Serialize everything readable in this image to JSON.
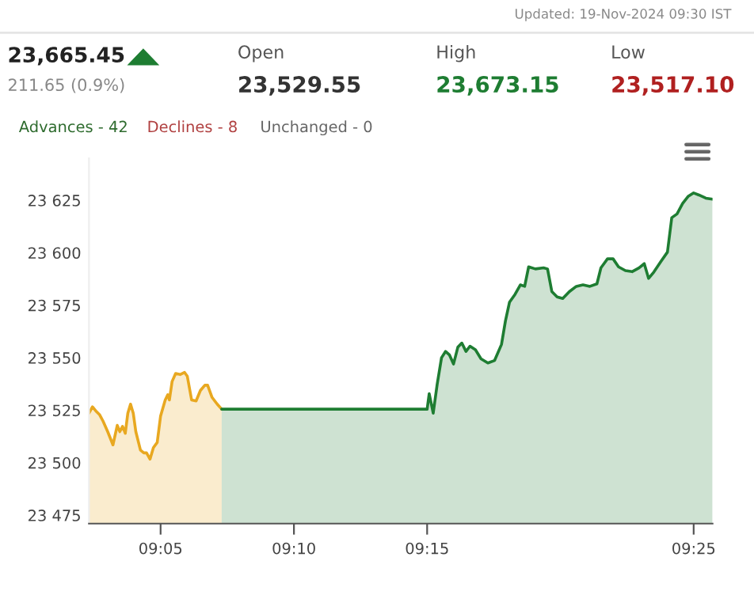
{
  "chart_data": {
    "type": "area",
    "annotations": [
      "Updated: 19-Nov-2024 09:30 IST",
      "23,665.45",
      "211.65 (0.9%)",
      "Open",
      "23,529.55",
      "High",
      "23,673.15",
      "Low",
      "23,517.10",
      "Advances - 42",
      "Declines - 8",
      "Unchanged - 0"
    ],
    "series": [
      {
        "color": "#e8a820",
        "x": [
          9.0385,
          9.0407,
          9.0432,
          9.0452,
          9.0473,
          9.0502,
          9.0535,
          9.0562,
          9.0578,
          9.0595,
          9.0612,
          9.0628,
          9.0645,
          9.0662,
          9.0678,
          9.0707,
          9.0728,
          9.0745,
          9.0767,
          9.0788,
          9.0812,
          9.0833,
          9.0862,
          9.0878,
          9.0888,
          9.0905,
          9.0927,
          9.0955,
          9.0983,
          9.1,
          9.1027,
          9.1055,
          9.1082,
          9.111,
          9.1127,
          9.1155,
          9.1187,
          9.1215
        ],
        "values": [
          23523.6,
          23526.6,
          23524.3,
          23522.8,
          23519.8,
          23514.8,
          23508.5,
          23517.8,
          23514.8,
          23517.3,
          23514.0,
          23523.6,
          23527.9,
          23523.6,
          23514.8,
          23506,
          23504.7,
          23504.7,
          23501.7,
          23507.2,
          23509.7,
          23522.3,
          23529.9,
          23532.4,
          23529.9,
          23538.7,
          23542.5,
          23542,
          23543,
          23541.2,
          23529.9,
          23529.4,
          23534.4,
          23536.9,
          23536.9,
          23531.1,
          23527.9,
          23525.5
        ]
      },
      {
        "color": "#1e7d32",
        "x": [
          9.1215,
          9.25,
          9.2513,
          9.2538,
          9.2563,
          9.259,
          9.2615,
          9.264,
          9.2665,
          9.2692,
          9.2717,
          9.2743,
          9.2768,
          9.2802,
          9.2837,
          9.288,
          9.2922,
          9.2965,
          9.299,
          9.3015,
          9.305,
          9.3083,
          9.311,
          9.3135,
          9.3177,
          9.3228,
          9.3253,
          9.328,
          9.3313,
          9.3348,
          9.339,
          9.3433,
          9.3475,
          9.3518,
          9.3562,
          9.3587,
          9.3628,
          9.3663,
          9.3697,
          9.374,
          9.3782,
          9.3825,
          9.3858,
          9.3885,
          9.3918,
          9.3962,
          9.4003,
          9.403,
          9.4063,
          9.4098,
          9.4132,
          9.4167,
          9.42,
          9.4243,
          9.4285
        ],
        "values": [
          23525.5,
          23525.5,
          23532.9,
          23523.6,
          23537.4,
          23550,
          23553,
          23551.3,
          23547,
          23555,
          23557,
          23553,
          23555.5,
          23553.8,
          23549.5,
          23547.5,
          23548.7,
          23556.3,
          23567.6,
          23576.4,
          23580.2,
          23584.7,
          23584,
          23593.3,
          23592.3,
          23592.8,
          23592.3,
          23581.5,
          23579,
          23578.2,
          23581.5,
          23584,
          23584.7,
          23584,
          23585.2,
          23592.8,
          23597.1,
          23597.1,
          23593.3,
          23591.5,
          23591,
          23592.8,
          23594.8,
          23587.8,
          23590.8,
          23595.8,
          23600.3,
          23616.7,
          23618.5,
          23623.5,
          23626.8,
          23628.5,
          23627.5,
          23626,
          23625.5
        ]
      }
    ],
    "xlim": [
      9.0385,
      9.4285
    ],
    "xticks": [
      {
        "value": 9.0833,
        "label": "09:05"
      },
      {
        "value": 9.1667,
        "label": "09:10"
      },
      {
        "value": 9.25,
        "label": "09:15"
      },
      {
        "value": 9.4167,
        "label": "09:25"
      }
    ],
    "ylim": [
      23471,
      23645
    ],
    "yticks": [
      {
        "value": 23475,
        "label": "23 475"
      },
      {
        "value": 23500,
        "label": "23 500"
      },
      {
        "value": 23525,
        "label": "23 525"
      },
      {
        "value": 23550,
        "label": "23 550"
      },
      {
        "value": 23575,
        "label": "23 575"
      },
      {
        "value": 23600,
        "label": "23 600"
      },
      {
        "value": 23625,
        "label": "23 625"
      }
    ],
    "grid": false,
    "legend": false
  }
}
